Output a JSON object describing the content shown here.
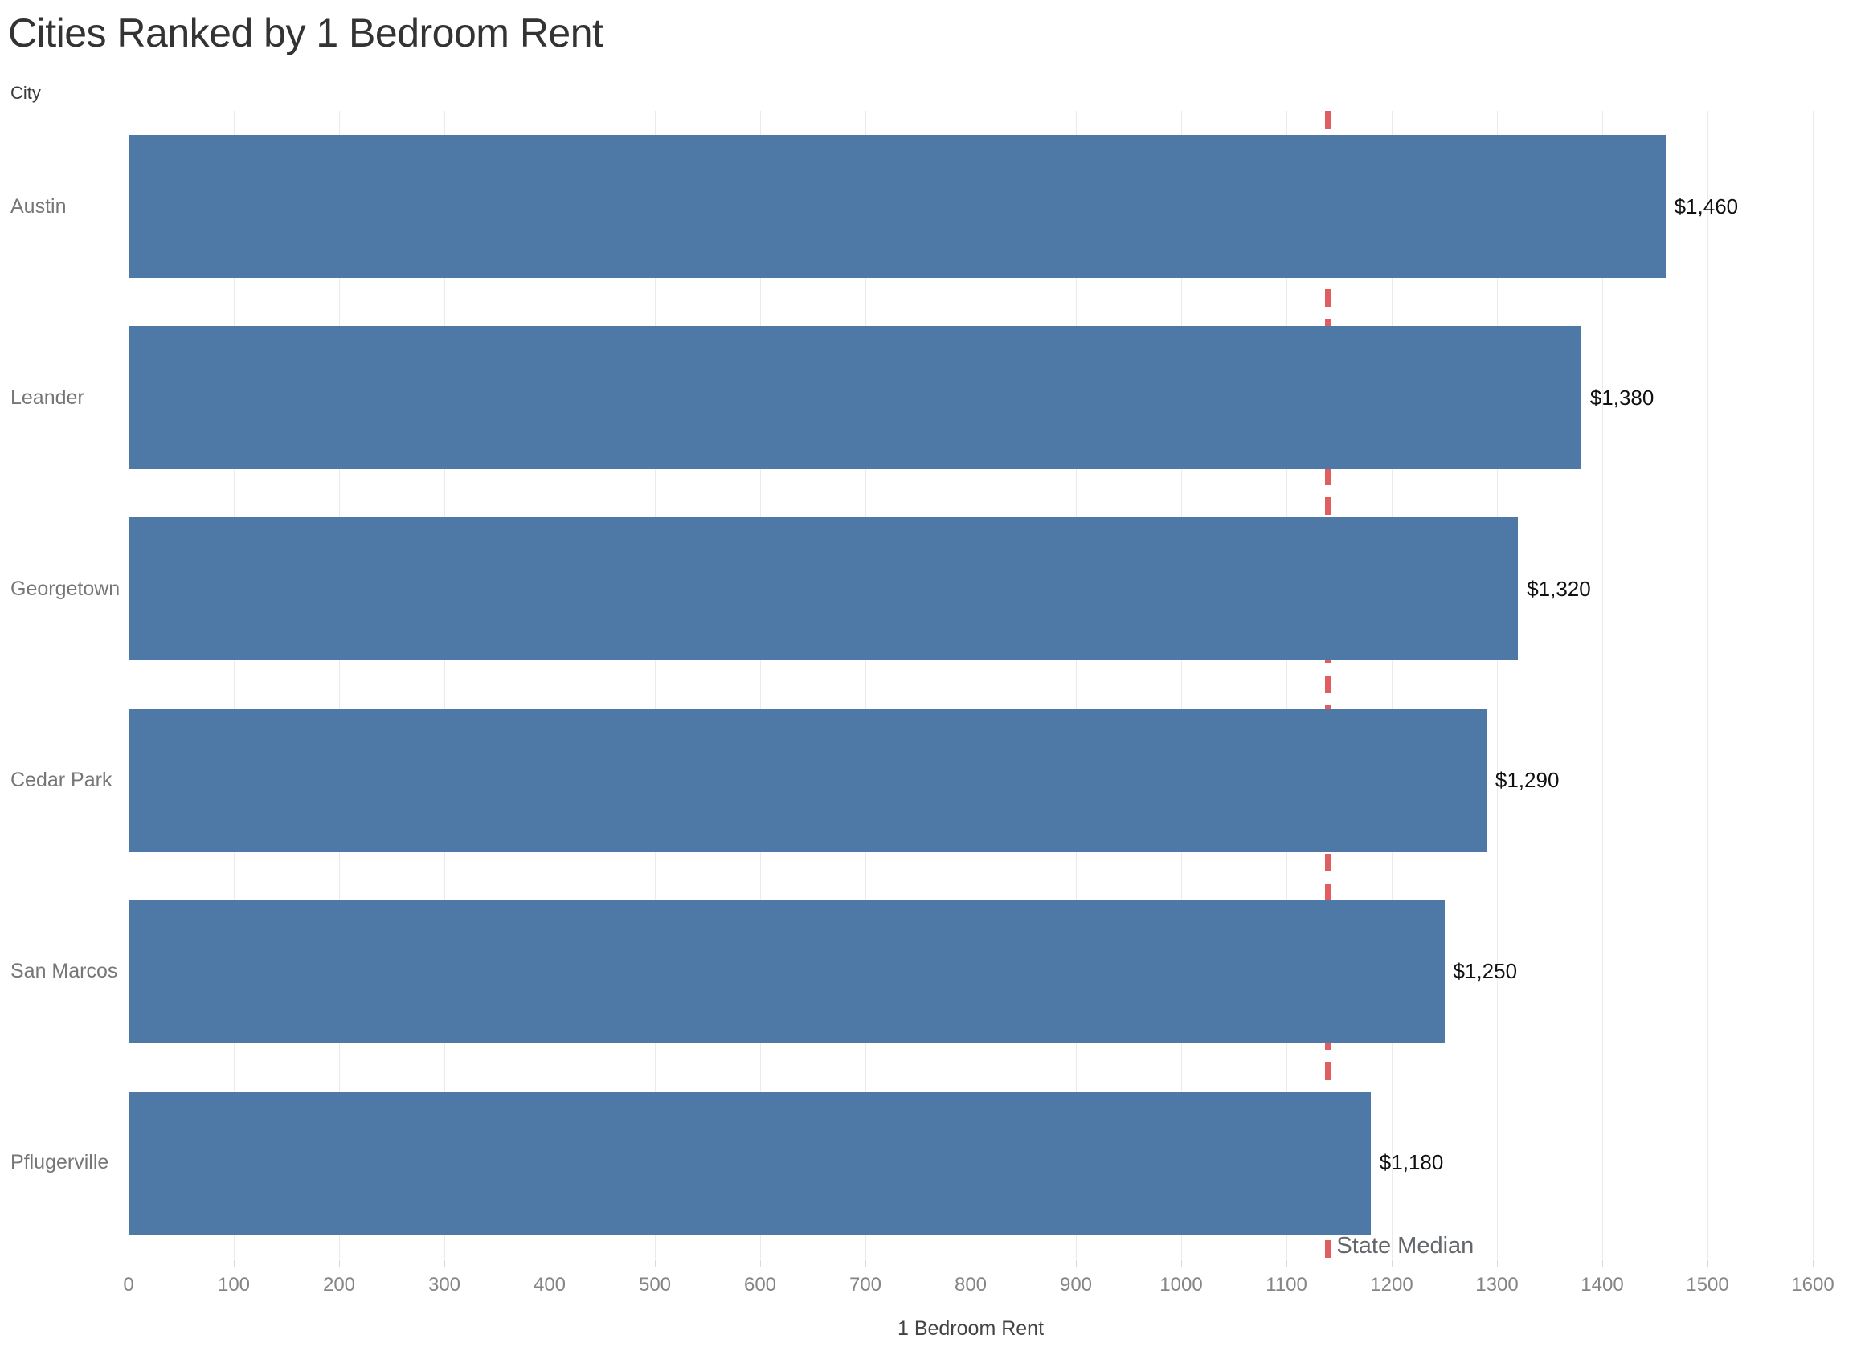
{
  "title": "Cities Ranked by 1 Bedroom Rent",
  "row_axis_title": "City",
  "x_axis_title": "1 Bedroom Rent",
  "reference_label": "State Median",
  "chart_data": {
    "type": "bar",
    "orientation": "horizontal",
    "title": "Cities Ranked by 1 Bedroom Rent",
    "categories": [
      "Austin",
      "Leander",
      "Georgetown",
      "Cedar Park",
      "San Marcos",
      "Pflugerville"
    ],
    "values": [
      1460,
      1380,
      1320,
      1290,
      1250,
      1180
    ],
    "value_labels": [
      "$1,460",
      "$1,380",
      "$1,320",
      "$1,290",
      "$1,250",
      "$1,180"
    ],
    "xlabel": "1 Bedroom Rent",
    "ylabel": "City",
    "xlim": [
      0,
      1600
    ],
    "x_ticks": [
      0,
      100,
      200,
      300,
      400,
      500,
      600,
      700,
      800,
      900,
      1000,
      1100,
      1200,
      1300,
      1400,
      1500,
      1600
    ],
    "grid": "vertical-only",
    "legend": "none",
    "reference_line": {
      "label": "State Median",
      "value": 1140,
      "style": "dashed"
    },
    "highlight_band": {
      "from": 1140,
      "to": 1180,
      "row": "Pflugerville"
    }
  },
  "colors": {
    "bar": "#4e79a7",
    "reference_line": "#e05d60",
    "highlight_band": "#a9c0da",
    "gridline": "#ebebeb",
    "title_text": "#333333",
    "header_text": "#767676",
    "value_text": "#111111",
    "tick_text": "#858585"
  }
}
